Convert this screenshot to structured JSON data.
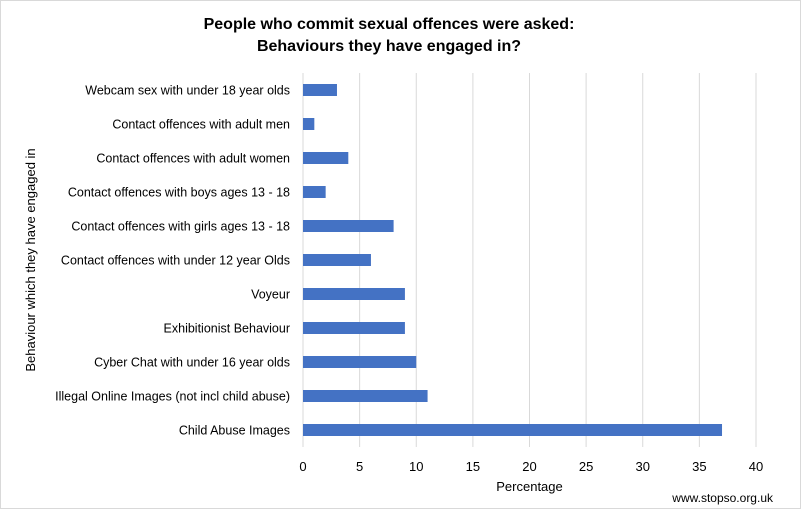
{
  "chart_data": {
    "type": "bar",
    "orientation": "horizontal",
    "title_lines": [
      "People who commit sexual offences were asked:",
      "Behaviours they have engaged in?"
    ],
    "xlabel": "Percentage",
    "ylabel": "Behaviour which they have engaged in",
    "xlim": [
      0,
      40
    ],
    "xticks": [
      "0",
      "5",
      "10",
      "15",
      "20",
      "25",
      "30",
      "35",
      "40"
    ],
    "grid": true,
    "categories": [
      "Webcam sex with under 18 year olds",
      "Contact offences with adult men",
      "Contact offences with adult women",
      "Contact offences with boys ages 13 - 18",
      "Contact offences with girls ages 13 - 18",
      "Contact offences with under 12 year Olds",
      "Voyeur",
      "Exhibitionist Behaviour",
      "Cyber Chat with under 16 year olds",
      "Illegal Online Images (not incl child abuse)",
      "Child Abuse Images"
    ],
    "values": [
      3,
      1,
      4,
      2,
      8,
      6,
      9,
      9,
      10,
      11,
      37
    ],
    "bar_color": "#4472c4"
  },
  "source": "www.stopso.org.uk"
}
